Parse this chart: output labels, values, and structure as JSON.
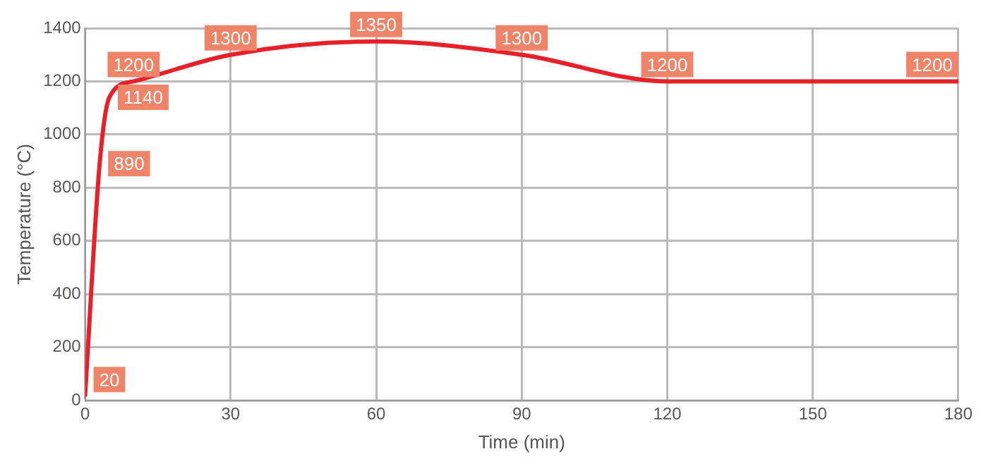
{
  "chart_data": {
    "type": "line",
    "xlabel": "Time (min)",
    "ylabel": "Temperature (°C)",
    "x": [
      0,
      3,
      5,
      10,
      30,
      60,
      90,
      120,
      180
    ],
    "series": [
      {
        "color": "#e8202a",
        "values": [
          20,
          890,
          1140,
          1200,
          1300,
          1350,
          1300,
          1200,
          1200
        ]
      }
    ],
    "xlim": [
      0,
      180
    ],
    "xticks": [
      0,
      30,
      60,
      90,
      120,
      150,
      180
    ],
    "ylim": [
      0,
      1400
    ],
    "yticks": [
      0,
      200,
      400,
      600,
      800,
      1000,
      1200,
      1400
    ],
    "grid": true,
    "legend": false,
    "marker": "none",
    "line_style": "solid",
    "data_labels": true
  }
}
